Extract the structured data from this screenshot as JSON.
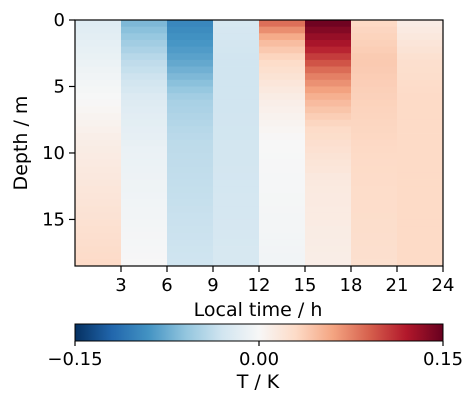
{
  "chart_data": {
    "type": "heatmap",
    "title": "",
    "xlabel": "Local time / h",
    "ylabel": "Depth / m",
    "x_ticks": [
      3,
      6,
      9,
      12,
      15,
      18,
      21,
      24
    ],
    "x_tick_labels": [
      "3",
      "6",
      "9",
      "12",
      "15",
      "18",
      "21",
      "24"
    ],
    "xlim": [
      0,
      24
    ],
    "y_ticks": [
      0,
      5,
      10,
      15
    ],
    "y_tick_labels": [
      "0",
      "5",
      "10",
      "15"
    ],
    "ylim": [
      18.5,
      0
    ],
    "y_axis_inverted": true,
    "x_bins": [
      [
        0,
        3
      ],
      [
        3,
        6
      ],
      [
        6,
        9
      ],
      [
        9,
        12
      ],
      [
        12,
        15
      ],
      [
        15,
        18
      ],
      [
        18,
        21
      ],
      [
        21,
        24
      ]
    ],
    "depth_step_m": 0.5,
    "depth_range_m": [
      0,
      18.5
    ],
    "value_profiles": [
      {
        "time_bin": "0-3",
        "values_at_depth": [
          [
            0,
            -0.02
          ],
          [
            3,
            -0.01
          ],
          [
            6,
            0.0
          ],
          [
            9,
            0.01
          ],
          [
            18.5,
            0.03
          ]
        ]
      },
      {
        "time_bin": "3-6",
        "values_at_depth": [
          [
            0,
            -0.07
          ],
          [
            3,
            -0.04
          ],
          [
            6,
            -0.02
          ],
          [
            10,
            -0.01
          ],
          [
            18.5,
            0.0
          ]
        ]
      },
      {
        "time_bin": "6-9",
        "values_at_depth": [
          [
            0,
            -0.1
          ],
          [
            3,
            -0.08
          ],
          [
            6,
            -0.05
          ],
          [
            9,
            -0.04
          ],
          [
            18.5,
            -0.03
          ]
        ]
      },
      {
        "time_bin": "9-12",
        "values_at_depth": [
          [
            0,
            -0.025
          ],
          [
            3,
            -0.03
          ],
          [
            6,
            -0.03
          ],
          [
            18.5,
            -0.025
          ]
        ]
      },
      {
        "time_bin": "12-15",
        "values_at_depth": [
          [
            0,
            0.09
          ],
          [
            1.5,
            0.05
          ],
          [
            3,
            0.03
          ],
          [
            6,
            0.01
          ],
          [
            9,
            0.0
          ],
          [
            18.5,
            -0.005
          ]
        ]
      },
      {
        "time_bin": "15-18",
        "values_at_depth": [
          [
            0,
            0.15
          ],
          [
            2,
            0.12
          ],
          [
            4,
            0.08
          ],
          [
            6,
            0.05
          ],
          [
            8,
            0.03
          ],
          [
            12,
            0.015
          ],
          [
            18.5,
            0.01
          ]
        ]
      },
      {
        "time_bin": "18-21",
        "values_at_depth": [
          [
            0,
            0.03
          ],
          [
            3,
            0.04
          ],
          [
            6,
            0.035
          ],
          [
            10,
            0.03
          ],
          [
            18.5,
            0.025
          ]
        ]
      },
      {
        "time_bin": "21-24",
        "values_at_depth": [
          [
            0,
            0.01
          ],
          [
            3,
            0.025
          ],
          [
            6,
            0.03
          ],
          [
            12,
            0.03
          ],
          [
            18.5,
            0.03
          ]
        ]
      }
    ],
    "colorbar": {
      "label": "T / K",
      "vmin": -0.15,
      "vmax": 0.15,
      "ticks": [
        -0.15,
        0.0,
        0.15
      ],
      "tick_labels": [
        "−0.15",
        "0.00",
        "0.15"
      ],
      "colormap": "RdBu_r",
      "colormap_stops": [
        "#053061",
        "#2166ac",
        "#4393c3",
        "#92c5de",
        "#d1e5f0",
        "#f7f7f7",
        "#fddbc7",
        "#f4a582",
        "#d6604d",
        "#b2182b",
        "#67001f"
      ]
    },
    "grid": false,
    "legend": "none"
  }
}
